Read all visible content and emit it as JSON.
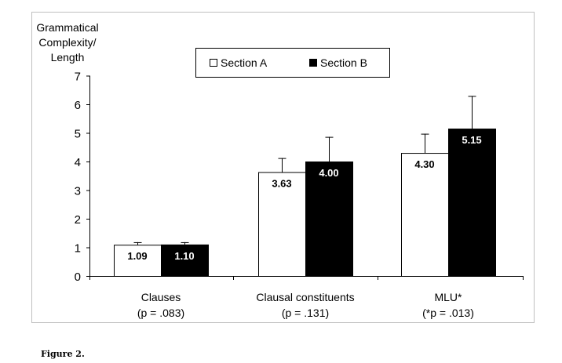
{
  "chart_data": {
    "type": "bar",
    "ylabel_lines": [
      "Grammatical",
      "Complexity/",
      "Length"
    ],
    "categories": [
      {
        "name": "Clauses",
        "note": "(p = .083)"
      },
      {
        "name": "Clausal constituents",
        "note": "(p = .131)"
      },
      {
        "name": "MLU*",
        "note": "(*p = .013)"
      }
    ],
    "series": [
      {
        "name": "Section A",
        "color": "#ffffff",
        "values": [
          1.09,
          3.63,
          4.3
        ],
        "value_labels": [
          "1.09",
          "3.63",
          "4.30"
        ],
        "error_upper": [
          1.18,
          4.12,
          4.97
        ]
      },
      {
        "name": "Section B",
        "color": "#000000",
        "values": [
          1.1,
          4.0,
          5.15
        ],
        "value_labels": [
          "1.10",
          "4.00",
          "5.15"
        ],
        "error_upper": [
          1.18,
          4.86,
          6.29
        ]
      }
    ],
    "yticks": [
      "0",
      "1",
      "2",
      "3",
      "4",
      "5",
      "6",
      "7"
    ],
    "ylim": [
      0,
      7
    ],
    "grid": false,
    "legend": {
      "position": "top-center",
      "items": [
        "Section A",
        "Section B"
      ]
    }
  },
  "caption": "Figure 2."
}
